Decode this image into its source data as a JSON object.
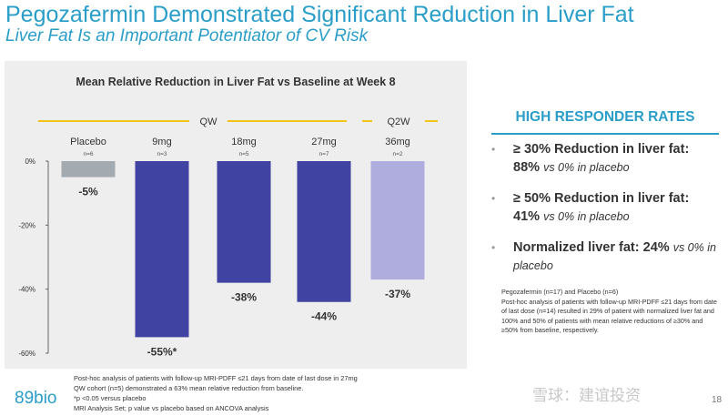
{
  "header": {
    "title": "Pegozafermin Demonstrated Significant Reduction in Liver Fat",
    "subtitle": "Liver Fat Is an Important Potentiator of CV Risk"
  },
  "chart_data": {
    "type": "bar",
    "title": "Mean Relative Reduction in Liver Fat vs Baseline at Week 8",
    "categories": [
      "Placebo",
      "9mg",
      "18mg",
      "27mg",
      "36mg"
    ],
    "n_labels": [
      "n=6",
      "n=3",
      "n=5",
      "n=7",
      "n=2"
    ],
    "values": [
      -5,
      -55,
      -38,
      -44,
      -37
    ],
    "value_labels": [
      "-5%",
      "-55%*",
      "-38%",
      "-44%",
      "-37%"
    ],
    "colors": [
      "#a3aab0",
      "#4143a2",
      "#4143a2",
      "#4143a2",
      "#aeadde"
    ],
    "group_labels": [
      {
        "label": "QW",
        "from": 1,
        "to": 3
      },
      {
        "label": "Q2W",
        "from": 4,
        "to": 4
      }
    ],
    "y_ticks": [
      0,
      -20,
      -40,
      -60
    ],
    "y_tick_labels": [
      "0%",
      "-20%",
      "-40%",
      "-60%"
    ],
    "ylim": [
      -60,
      0
    ],
    "xlabel": "",
    "ylabel": ""
  },
  "high_responder": {
    "title": "HIGH RESPONDER RATES",
    "items": [
      {
        "head": "≥ 30% Reduction in liver fat:",
        "value": "88%",
        "compare": "vs 0% in placebo"
      },
      {
        "head": "≥ 50% Reduction in liver fat:",
        "value": "41%",
        "compare": "vs 0% in placebo"
      },
      {
        "head": "Normalized liver fat:",
        "value": "24%",
        "compare": "vs 0% in placebo"
      }
    ],
    "notes": [
      "Pegozafermin (n=17) and Placebo (n=6)",
      "Post-hoc analysis of patients with follow-up MRI-PDFF ≤21 days from date of last dose (n=14) resulted in 29% of patient with normalized liver fat and 100% and 50% of patients with mean relative reductions of ≥30% and ≥50% from baseline, respectively."
    ]
  },
  "footnotes": [
    "Post-hoc analysis of patients with follow-up MRI-PDFF ≤21 days from date of last dose in 27mg",
    "QW cohort (n=5) demonstrated a 63% mean relative reduction from baseline.",
    "*p <0.05 versus placebo",
    "MRI Analysis Set; p value vs placebo based on ANCOVA analysis"
  ],
  "logo": "89bio",
  "watermark": "雪球：建谊投资",
  "page_number": "18",
  "colors": {
    "brand": "#2a9ec8",
    "accent_gold": "#f2c318",
    "panel_bg": "#eeeeee"
  }
}
